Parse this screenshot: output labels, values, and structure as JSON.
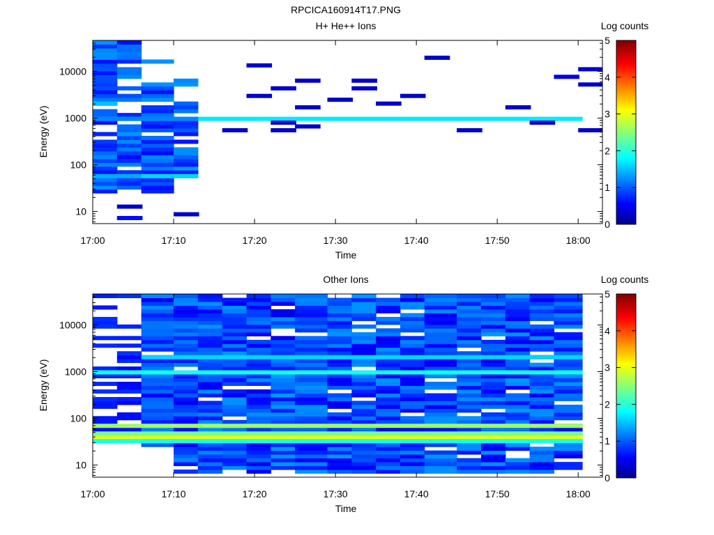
{
  "figure": {
    "title": "RPCICA160914T17.PNG"
  },
  "chart_data": [
    {
      "type": "heatmap",
      "title": "H+ He++ Ions",
      "xlabel": "Time",
      "ylabel": "Energy (eV)",
      "y_scale": "log",
      "ylim": [
        5.5,
        46000
      ],
      "xlim": [
        "17:00",
        "18:03"
      ],
      "x_ticks": [
        "17:00",
        "17:10",
        "17:20",
        "17:30",
        "17:40",
        "17:50",
        "18:00"
      ],
      "y_ticks": [
        "10",
        "100",
        "1000",
        "10000"
      ],
      "colorbar": {
        "label": "Log counts",
        "ticks": [
          "0",
          "1",
          "2",
          "3",
          "4",
          "5"
        ],
        "range": [
          0,
          5
        ]
      },
      "time_bins": [
        "17:00",
        "17:03",
        "17:06",
        "17:10",
        "17:13",
        "17:16",
        "17:19",
        "17:22",
        "17:25",
        "17:29",
        "17:32",
        "17:35",
        "17:38",
        "17:41",
        "17:45",
        "17:48",
        "17:51",
        "17:54",
        "17:57"
      ],
      "bands": [
        {
          "energy": 1000,
          "time_from": "17:00",
          "time_to": "18:00",
          "log_counts": 1.7
        },
        {
          "energy": 1050,
          "time_from": "17:00",
          "time_to": "17:13",
          "log_counts": 1.2
        },
        {
          "energy": 2000,
          "time_from": "17:00",
          "time_to": "17:03",
          "log_counts": 1.5
        },
        {
          "energy": 60,
          "time_from": "17:00",
          "time_to": "17:13",
          "log_counts": 1.4
        },
        {
          "energy": 55,
          "time_from": "17:06",
          "time_to": "17:13",
          "log_counts": 1.6
        }
      ],
      "points": [
        {
          "time": "17:03",
          "energy": 8,
          "log_counts": 0.6
        },
        {
          "time": "17:03",
          "energy": 14,
          "log_counts": 0.3
        },
        {
          "time": "17:10",
          "energy": 9,
          "log_counts": 0.3
        },
        {
          "time": "17:16",
          "energy": 560,
          "log_counts": 0.3
        },
        {
          "time": "17:19",
          "energy": 14000,
          "log_counts": 0.3
        },
        {
          "time": "17:19",
          "energy": 3300,
          "log_counts": 0.3
        },
        {
          "time": "17:22",
          "energy": 4300,
          "log_counts": 0.3
        },
        {
          "time": "17:22",
          "energy": 760,
          "log_counts": 0.3
        },
        {
          "time": "17:22",
          "energy": 560,
          "log_counts": 0.3
        },
        {
          "time": "17:25",
          "energy": 6400,
          "log_counts": 0.3
        },
        {
          "time": "17:25",
          "energy": 1700,
          "log_counts": 0.3
        },
        {
          "time": "17:25",
          "energy": 680,
          "log_counts": 0.3
        },
        {
          "time": "17:29",
          "energy": 2700,
          "log_counts": 0.3
        },
        {
          "time": "17:32",
          "energy": 6400,
          "log_counts": 0.3
        },
        {
          "time": "17:32",
          "energy": 4000,
          "log_counts": 0.3
        },
        {
          "time": "17:35",
          "energy": 2100,
          "log_counts": 0.3
        },
        {
          "time": "17:38",
          "energy": 3300,
          "log_counts": 0.3
        },
        {
          "time": "17:41",
          "energy": 18000,
          "log_counts": 0.3
        },
        {
          "time": "17:45",
          "energy": 560,
          "log_counts": 0.3
        },
        {
          "time": "17:51",
          "energy": 1700,
          "log_counts": 0.3
        },
        {
          "time": "17:54",
          "energy": 760,
          "log_counts": 0.3
        },
        {
          "time": "17:57",
          "energy": 8200,
          "log_counts": 0.4
        },
        {
          "time": "18:00",
          "energy": 11000,
          "log_counts": 0.3
        },
        {
          "time": "18:00",
          "energy": 5500,
          "log_counts": 0.3
        },
        {
          "time": "18:00",
          "energy": 520,
          "log_counts": 0.3
        }
      ]
    },
    {
      "type": "heatmap",
      "title": "Other Ions",
      "xlabel": "Time",
      "ylabel": "Energy (eV)",
      "y_scale": "log",
      "ylim": [
        5.5,
        46000
      ],
      "xlim": [
        "17:00",
        "18:03"
      ],
      "x_ticks": [
        "17:00",
        "17:10",
        "17:20",
        "17:30",
        "17:40",
        "17:50",
        "18:00"
      ],
      "y_ticks": [
        "10",
        "100",
        "1000",
        "10000"
      ],
      "colorbar": {
        "label": "Log counts",
        "ticks": [
          "0",
          "1",
          "2",
          "3",
          "4",
          "5"
        ],
        "range": [
          0,
          5
        ]
      },
      "time_bins": [
        "17:00",
        "17:03",
        "17:06",
        "17:10",
        "17:13",
        "17:16",
        "17:19",
        "17:22",
        "17:25",
        "17:29",
        "17:32",
        "17:35",
        "17:38",
        "17:41",
        "17:45",
        "17:48",
        "17:51",
        "17:54",
        "17:57"
      ],
      "bands": [
        {
          "energy": 37,
          "time_from": "17:00",
          "time_to": "18:00",
          "log_counts": 3.0
        },
        {
          "energy": 48,
          "time_from": "17:00",
          "time_to": "18:00",
          "log_counts": 2.4
        },
        {
          "energy": 68,
          "time_from": "17:00",
          "time_to": "18:00",
          "log_counts": 2.6
        },
        {
          "energy": 30,
          "time_from": "17:00",
          "time_to": "18:00",
          "log_counts": 1.9
        },
        {
          "energy": 1000,
          "time_from": "17:00",
          "time_to": "18:00",
          "log_counts": 1.9
        },
        {
          "energy": 2000,
          "time_from": "17:06",
          "time_to": "18:00",
          "log_counts": 1.6
        },
        {
          "energy": 12,
          "time_from": "17:10",
          "time_to": "17:13",
          "log_counts": 1.2
        }
      ]
    }
  ]
}
